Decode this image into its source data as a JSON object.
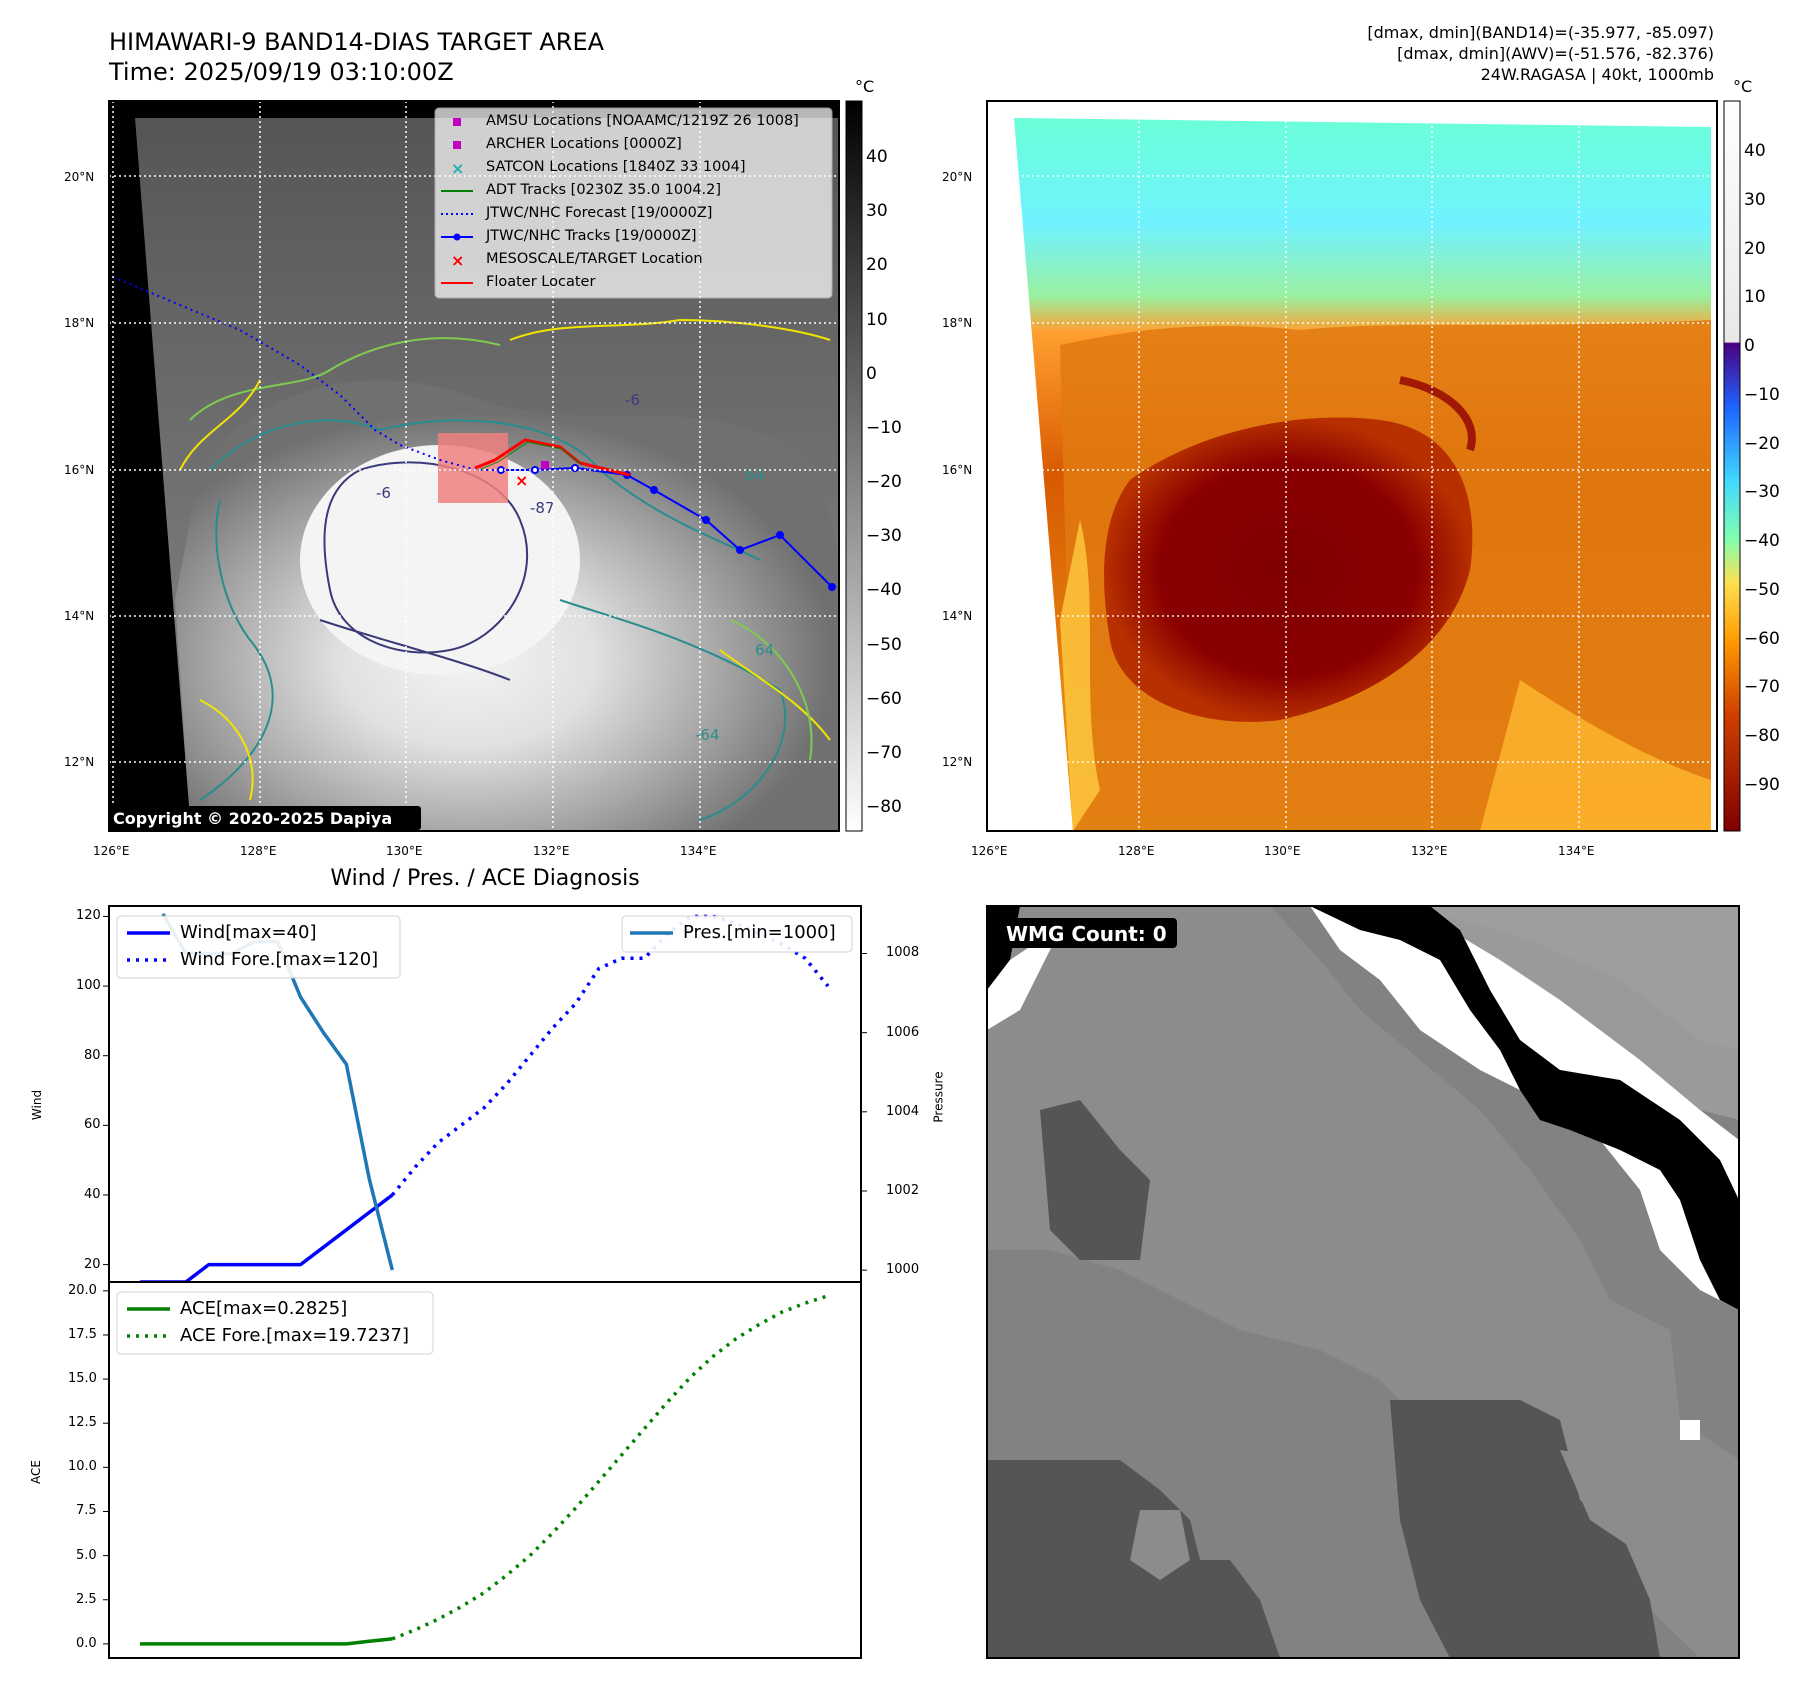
{
  "header": {
    "title_line1": "HIMAWARI-9 BAND14-DIAS TARGET AREA",
    "title_line2": "Time: 2025/09/19 03:10:00Z",
    "info_line1": "[dmax, dmin](BAND14)=(-35.977, -85.097)",
    "info_line2": "[dmax, dmin](AWV)=(-51.576, -82.376)",
    "info_line3": "24W.RAGASA | 40kt, 1000mb"
  },
  "copyright": "Copyright © 2020-2025 Dapiya",
  "map": {
    "lat_labels": [
      "20°N",
      "18°N",
      "16°N",
      "14°N",
      "12°N"
    ],
    "lon_labels": [
      "126°E",
      "128°E",
      "130°E",
      "132°E",
      "134°E"
    ],
    "legend": [
      {
        "label": "AMSU Locations [NOAAMC/1219Z 26 1008]",
        "marker": "square",
        "color": "#c000c0"
      },
      {
        "label": "ARCHER Locations [0000Z]",
        "marker": "square",
        "color": "#c000c0"
      },
      {
        "label": "SATCON Locations [1840Z 33 1004]",
        "marker": "x",
        "color": "#20b0b0"
      },
      {
        "label": "ADT Tracks [0230Z 35.0 1004.2]",
        "marker": "line",
        "color": "#008000"
      },
      {
        "label": "JTWC/NHC Forecast [19/0000Z]",
        "marker": "dotted",
        "color": "#0000ff"
      },
      {
        "label": "JTWC/NHC Tracks [19/0000Z]",
        "marker": "line-dot",
        "color": "#0000ff"
      },
      {
        "label": "MESOSCALE/TARGET Location",
        "marker": "x",
        "color": "#ff0000"
      },
      {
        "label": "Floater Locater",
        "marker": "line",
        "color": "#ff0000"
      }
    ],
    "contour_labels": [
      "-87",
      "-6",
      "64",
      "64",
      "-64",
      "-6"
    ]
  },
  "colorbars": {
    "unit": "°C",
    "gray_ticks": [
      "40",
      "30",
      "20",
      "10",
      "0",
      "−10",
      "−20",
      "−30",
      "−40",
      "−50",
      "−60",
      "−70",
      "−80"
    ],
    "color_ticks": [
      "40",
      "30",
      "20",
      "10",
      "0",
      "−10",
      "−20",
      "−30",
      "−40",
      "−50",
      "−60",
      "−70",
      "−80",
      "−90"
    ]
  },
  "wmg_label": "WMG Count: 0",
  "chart_data": [
    {
      "type": "line",
      "title": "Wind / Pres. / ACE Diagnosis",
      "ylabel": "Wind",
      "ylabel_right": "Pressure",
      "ylim": [
        15,
        123
      ],
      "ylim_right": [
        999.7,
        1009.2
      ],
      "yticks": [
        "120",
        "100",
        "80",
        "60",
        "40",
        "20"
      ],
      "yticks_right": [
        "1008",
        "1006",
        "1004",
        "1002",
        "1000"
      ],
      "x_index": [
        0,
        1,
        2,
        3,
        4,
        5,
        6,
        7,
        8,
        9,
        10,
        11,
        12,
        13,
        14,
        15,
        16,
        17,
        18,
        19,
        20,
        21,
        22,
        23,
        24,
        25,
        26,
        27,
        28,
        29,
        30
      ],
      "series": [
        {
          "name": "Wind[max=40]",
          "style": "solid",
          "color": "#0000ff",
          "x": [
            0,
            1,
            2,
            3,
            4,
            5,
            6,
            7,
            8,
            9,
            10,
            11
          ],
          "values": [
            15,
            15,
            15,
            20,
            20,
            20,
            20,
            20,
            25,
            30,
            35,
            40
          ]
        },
        {
          "name": "Wind Fore.[max=120]",
          "style": "dotted",
          "color": "#0000ff",
          "x": [
            11,
            12,
            13,
            14,
            15,
            16,
            17,
            18,
            19,
            20,
            21,
            22,
            23,
            24,
            25,
            26,
            27,
            28,
            29,
            30
          ],
          "values": [
            40,
            48,
            55,
            60,
            65,
            72,
            80,
            88,
            95,
            105,
            108,
            108,
            115,
            120,
            120,
            118,
            115,
            112,
            108,
            100
          ]
        },
        {
          "name": "Pres.[min=1000]",
          "style": "solid",
          "color": "#1f77b4",
          "axis": "right",
          "x": [
            1,
            2,
            3,
            4,
            5,
            6,
            7,
            8,
            9,
            10,
            11
          ],
          "values": [
            1009,
            1008,
            1008,
            1008,
            1008.3,
            1008.3,
            1006.9,
            1006.0,
            1005.2,
            1002.3,
            1000
          ]
        }
      ]
    },
    {
      "type": "line",
      "ylabel": "ACE",
      "ylim": [
        -0.8,
        20.5
      ],
      "yticks": [
        "20.0",
        "17.5",
        "15.0",
        "12.5",
        "10.0",
        "7.5",
        "5.0",
        "2.5",
        "0.0"
      ],
      "series": [
        {
          "name": "ACE[max=0.2825]",
          "style": "solid",
          "color": "#008000",
          "x": [
            0,
            1,
            2,
            3,
            4,
            5,
            6,
            7,
            8,
            9,
            10,
            11
          ],
          "values": [
            0,
            0,
            0,
            0,
            0,
            0,
            0,
            0,
            0,
            0,
            0.15,
            0.2825
          ]
        },
        {
          "name": "ACE Fore.[max=19.7237]",
          "style": "dotted",
          "color": "#008000",
          "x": [
            11,
            12,
            13,
            14,
            15,
            16,
            17,
            18,
            19,
            20,
            21,
            22,
            23,
            24,
            25,
            26,
            27,
            28,
            29,
            30
          ],
          "values": [
            0.28,
            0.8,
            1.4,
            2.1,
            2.9,
            3.9,
            5.0,
            6.3,
            7.7,
            9.2,
            10.7,
            12.2,
            13.7,
            15.1,
            16.3,
            17.3,
            18.1,
            18.8,
            19.3,
            19.72
          ]
        }
      ]
    }
  ]
}
